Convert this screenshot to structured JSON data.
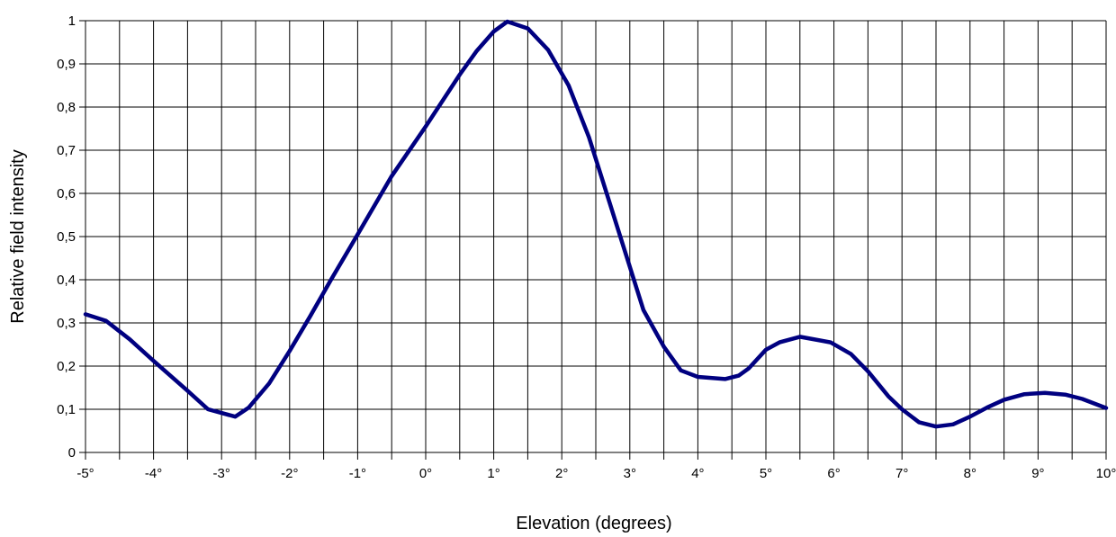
{
  "chart_data": {
    "type": "line",
    "title": "",
    "xlabel": "Elevation (degrees)",
    "ylabel": "Relative field intensity",
    "xlim": [
      -5,
      10
    ],
    "ylim": [
      0,
      1
    ],
    "grid": true,
    "x_ticks": [
      -5,
      -4,
      -3,
      -2,
      -1,
      0,
      1,
      2,
      3,
      4,
      5,
      6,
      7,
      8,
      9,
      10
    ],
    "x_tick_labels": [
      "-5°",
      "-4°",
      "-3°",
      "-2°",
      "-1°",
      "0°",
      "1°",
      "2°",
      "3°",
      "4°",
      "5°",
      "6°",
      "7°",
      "8°",
      "9°",
      "10°"
    ],
    "y_ticks": [
      0,
      0.1,
      0.2,
      0.3,
      0.4,
      0.5,
      0.6,
      0.7,
      0.8,
      0.9,
      1
    ],
    "y_tick_labels": [
      "0",
      "0,1",
      "0,2",
      "0,3",
      "0,4",
      "0,5",
      "0,6",
      "0,7",
      "0,8",
      "0,9",
      "1"
    ],
    "line_color": "#000080",
    "series": [
      {
        "x": [
          -5,
          -4.7,
          -4.35,
          -4.0,
          -3.5,
          -3.2,
          -2.8,
          -2.6,
          -2.3,
          -2.0,
          -1.7,
          -1.4,
          -1.0,
          -0.5,
          0,
          0.5,
          0.75,
          1.0,
          1.2,
          1.5,
          1.8,
          2.1,
          2.4,
          2.7,
          3.0,
          3.2,
          3.5,
          3.75,
          4.0,
          4.4,
          4.6,
          4.75,
          5.0,
          5.2,
          5.5,
          5.95,
          6.25,
          6.5,
          6.8,
          7.0,
          7.25,
          7.5,
          7.75,
          8.0,
          8.25,
          8.5,
          8.8,
          9.1,
          9.4,
          9.65,
          10.0
        ],
        "y": [
          0.32,
          0.305,
          0.262,
          0.212,
          0.143,
          0.1,
          0.083,
          0.104,
          0.16,
          0.235,
          0.315,
          0.398,
          0.505,
          0.64,
          0.755,
          0.875,
          0.93,
          0.975,
          0.998,
          0.982,
          0.932,
          0.85,
          0.73,
          0.58,
          0.43,
          0.33,
          0.245,
          0.19,
          0.175,
          0.17,
          0.178,
          0.195,
          0.238,
          0.255,
          0.268,
          0.255,
          0.228,
          0.188,
          0.13,
          0.1,
          0.07,
          0.06,
          0.065,
          0.083,
          0.104,
          0.122,
          0.135,
          0.138,
          0.134,
          0.124,
          0.103
        ]
      }
    ]
  }
}
